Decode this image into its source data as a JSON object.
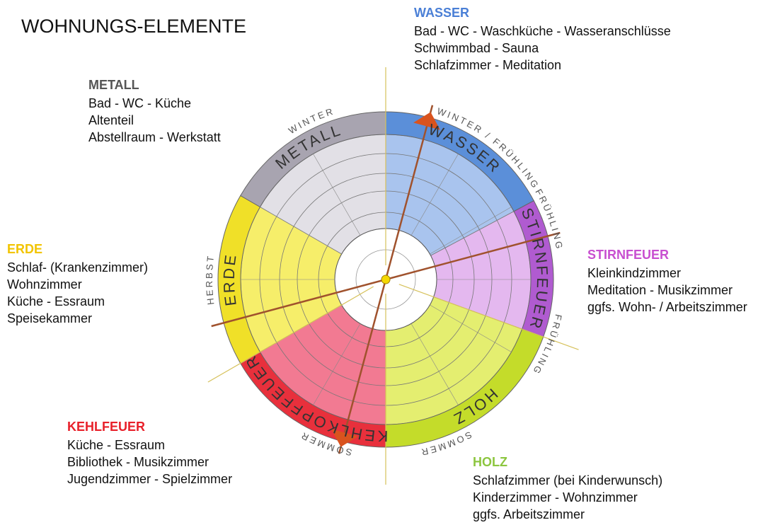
{
  "title": "WOHNUNGS-ELEMENTE",
  "elements": [
    {
      "name": "WASSER",
      "lines": [
        "Bad - WC - Waschküche - Wasseranschlüsse",
        "Schwimmbad - Sauna",
        "Schlafzimmer - Meditation"
      ]
    },
    {
      "name": "METALL",
      "lines": [
        "Bad - WC - Küche",
        "Altenteil",
        "Abstellraum - Werkstatt"
      ]
    },
    {
      "name": "ERDE",
      "lines": [
        "Schlaf- (Krankenzimmer)",
        "Wohnzimmer",
        "Küche - Essraum",
        "Speisekammer"
      ]
    },
    {
      "name": "STIRNFEUER",
      "lines": [
        "Kleinkindzimmer",
        "Meditation - Musikzimmer",
        "ggfs. Wohn- / Arbeitszimmer"
      ]
    },
    {
      "name": "KEHLFEUER",
      "lines": [
        "Küche - Essraum",
        "Bibliothek - Musikzimmer",
        "Jugendzimmer - Spielzimmer"
      ]
    },
    {
      "name": "HOLZ",
      "lines": [
        "Schlafzimmer (bei Kinderwunsch)",
        "Kinderzimmer - Wohnzimmer",
        "ggfs. Arbeitszimmer"
      ]
    }
  ],
  "wheel": {
    "segments": [
      "WASSER",
      "STIRNFEUER",
      "HOLZ",
      "KEHLKOPFFEUER",
      "ERDE",
      "METALL"
    ],
    "seasons": [
      "WINTER",
      "WINTER / FRÜHLING",
      "FRÜHLING",
      "FRÜHLING",
      "SOMMER",
      "SOMMER",
      "HERBST"
    ]
  }
}
